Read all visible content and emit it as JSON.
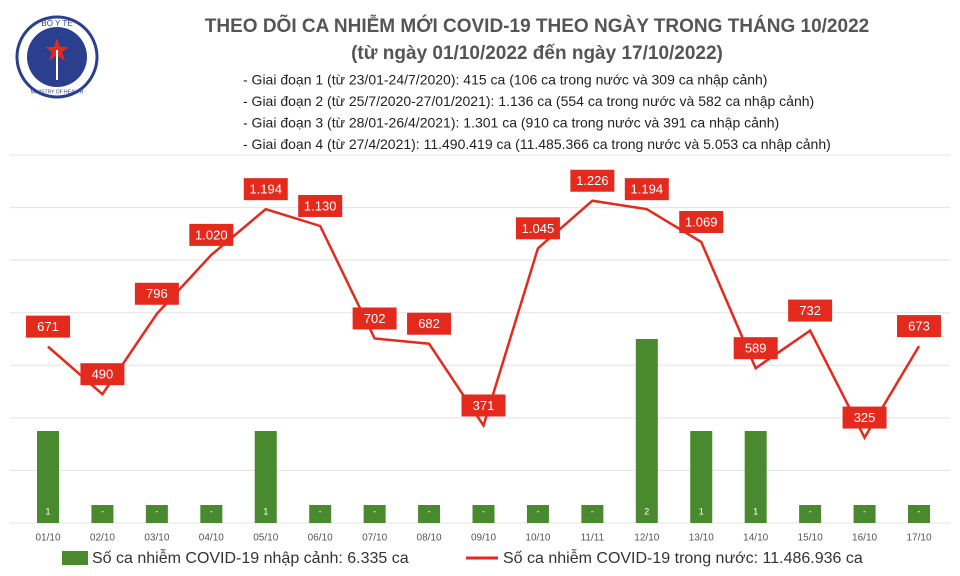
{
  "logo": {
    "top": "BỘ Y TẾ",
    "bottom": "MINISTRY OF HEALTH"
  },
  "chart_data": {
    "type": "combo",
    "title": "THEO DÕI CA NHIỄM MỚI COVID-19 THEO NGÀY TRONG THÁNG 10/2022",
    "subtitle": "(từ ngày 01/10/2022 đến ngày 17/10/2022)",
    "annotations": [
      "- Giai đoạn 1 (từ 23/01-24/7/2020): 415 ca (106 ca trong nước và 309 ca nhập cảnh)",
      "- Giai đoạn 2 (từ 25/7/2020-27/01/2021): 1.136 ca (554 ca trong nước và 582 ca nhập cảnh)",
      "- Giai đoạn 3 (từ 28/01-26/4/2021): 1.301 ca (910 ca trong nước và 391 ca nhập cảnh)",
      "- Giai đoạn 4 (từ 27/4/2021): 11.490.419 ca (11.485.366 ca trong nước và 5.053 ca nhập cảnh)"
    ],
    "categories": [
      "01/10",
      "02/10",
      "03/10",
      "04/10",
      "05/10",
      "06/10",
      "07/10",
      "08/10",
      "09/10",
      "10/10",
      "11/11",
      "12/10",
      "13/10",
      "14/10",
      "15/10",
      "16/10",
      "17/10"
    ],
    "series": [
      {
        "name": "Số ca nhiễm COVID-19 nhập cảnh: 6.335 ca",
        "type": "bar",
        "axis": "y2",
        "color": "#4a8a2f",
        "values": [
          1,
          0,
          0,
          0,
          1,
          0,
          0,
          0,
          0,
          0,
          0,
          2,
          1,
          1,
          0,
          0,
          0
        ],
        "value_labels": [
          "1",
          "-",
          "-",
          "-",
          "1",
          "-",
          "-",
          "-",
          "-",
          "-",
          "-",
          "2",
          "1",
          "1",
          "-",
          "-",
          "-"
        ]
      },
      {
        "name": "Số ca nhiễm COVID-19 trong nước: 11.486.936 ca",
        "type": "line",
        "color": "#e42a1d",
        "values": [
          671,
          490,
          796,
          1020,
          1194,
          1130,
          702,
          682,
          371,
          1045,
          1226,
          1194,
          1069,
          589,
          732,
          325,
          673
        ],
        "value_labels": [
          "671",
          "490",
          "796",
          "1.020",
          "1.194",
          "1.130",
          "702",
          "682",
          "371",
          "1.045",
          "1.226",
          "1.194",
          "1.069",
          "589",
          "732",
          "325",
          "673"
        ]
      }
    ],
    "ylim": [
      0,
      1400
    ],
    "yticks": [
      0,
      200,
      400,
      600,
      800,
      1000,
      1200,
      1400
    ],
    "y2lim": [
      0,
      4
    ],
    "grid": true
  }
}
